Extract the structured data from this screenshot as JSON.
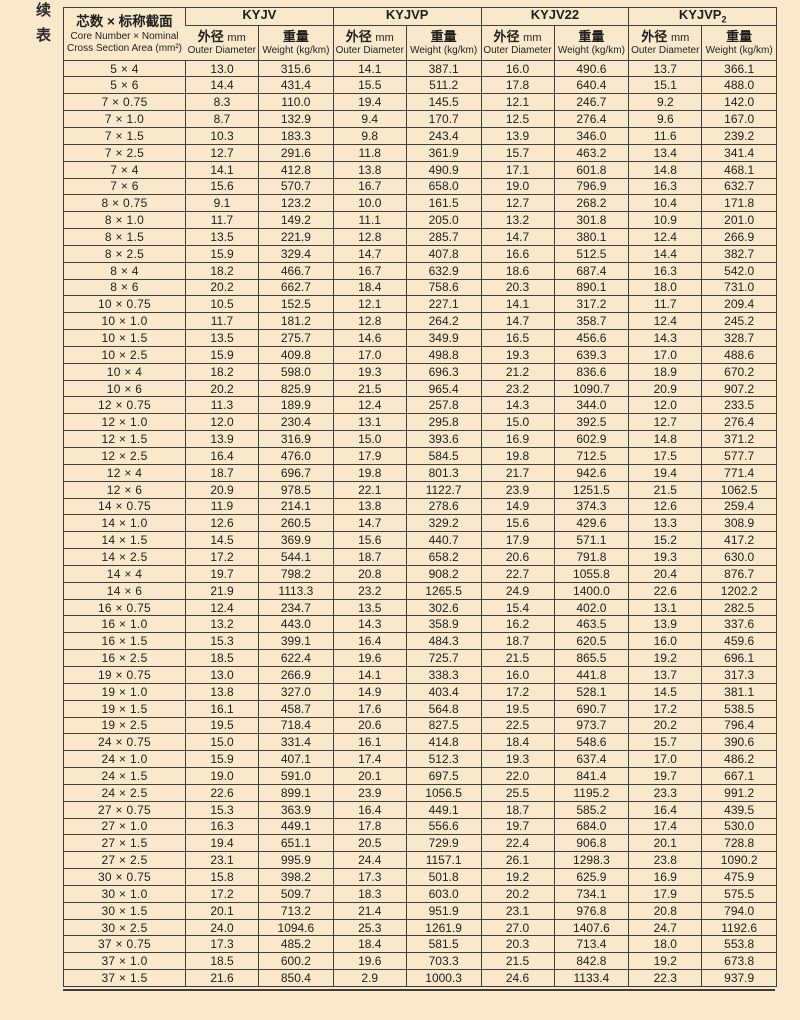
{
  "page": {
    "continued_label_line1": "续",
    "continued_label_line2": "表"
  },
  "colors": {
    "background": "#f9e9ca",
    "grid_line": "#3f3e3c",
    "text": "#1e1e1e"
  },
  "table": {
    "row_header": {
      "line1_zh": "芯数 × 标称截面",
      "line2_en": "Core Number × Nominal",
      "line3_en": "Cross Section Area (mm²)"
    },
    "groups": [
      {
        "label": "KYJV",
        "sub": ""
      },
      {
        "label": "KYJVP",
        "sub": ""
      },
      {
        "label": "KYJV22",
        "sub": ""
      },
      {
        "label": "KYJVP",
        "sub": "2"
      }
    ],
    "subheaders": {
      "diameter_zh": "外径",
      "diameter_unit": "mm",
      "diameter_en": "Outer Diameter",
      "weight_zh": "重量",
      "weight_en": "Weight (kg/km)"
    },
    "rows": [
      {
        "spec": "5 × 4",
        "values": [
          "13.0",
          "315.6",
          "14.1",
          "387.1",
          "16.0",
          "490.6",
          "13.7",
          "366.1"
        ]
      },
      {
        "spec": "5 × 6",
        "values": [
          "14.4",
          "431.4",
          "15.5",
          "511.2",
          "17.8",
          "640.4",
          "15.1",
          "488.0"
        ]
      },
      {
        "spec": "7 × 0.75",
        "values": [
          "8.3",
          "110.0",
          "19.4",
          "145.5",
          "12.1",
          "246.7",
          "9.2",
          "142.0"
        ]
      },
      {
        "spec": "7 × 1.0",
        "values": [
          "8.7",
          "132.9",
          "9.4",
          "170.7",
          "12.5",
          "276.4",
          "9.6",
          "167.0"
        ]
      },
      {
        "spec": "7 × 1.5",
        "values": [
          "10.3",
          "183.3",
          "9.8",
          "243.4",
          "13.9",
          "346.0",
          "11.6",
          "239.2"
        ]
      },
      {
        "spec": "7 × 2.5",
        "values": [
          "12.7",
          "291.6",
          "11.8",
          "361.9",
          "15.7",
          "463.2",
          "13.4",
          "341.4"
        ]
      },
      {
        "spec": "7 × 4",
        "values": [
          "14.1",
          "412.8",
          "13.8",
          "490.9",
          "17.1",
          "601.8",
          "14.8",
          "468.1"
        ]
      },
      {
        "spec": "7 × 6",
        "values": [
          "15.6",
          "570.7",
          "16.7",
          "658.0",
          "19.0",
          "796.9",
          "16.3",
          "632.7"
        ]
      },
      {
        "spec": "8 × 0.75",
        "values": [
          "9.1",
          "123.2",
          "10.0",
          "161.5",
          "12.7",
          "268.2",
          "10.4",
          "171.8"
        ]
      },
      {
        "spec": "8 × 1.0",
        "values": [
          "11.7",
          "149.2",
          "11.1",
          "205.0",
          "13.2",
          "301.8",
          "10.9",
          "201.0"
        ]
      },
      {
        "spec": "8 × 1.5",
        "values": [
          "13.5",
          "221.9",
          "12.8",
          "285.7",
          "14.7",
          "380.1",
          "12.4",
          "266.9"
        ]
      },
      {
        "spec": "8 × 2.5",
        "values": [
          "15.9",
          "329.4",
          "14.7",
          "407.8",
          "16.6",
          "512.5",
          "14.4",
          "382.7"
        ]
      },
      {
        "spec": "8 × 4",
        "values": [
          "18.2",
          "466.7",
          "16.7",
          "632.9",
          "18.6",
          "687.4",
          "16.3",
          "542.0"
        ]
      },
      {
        "spec": "8 × 6",
        "values": [
          "20.2",
          "662.7",
          "18.4",
          "758.6",
          "20.3",
          "890.1",
          "18.0",
          "731.0"
        ]
      },
      {
        "spec": "10 × 0.75",
        "values": [
          "10.5",
          "152.5",
          "12.1",
          "227.1",
          "14.1",
          "317.2",
          "11.7",
          "209.4"
        ]
      },
      {
        "spec": "10 × 1.0",
        "values": [
          "11.7",
          "181.2",
          "12.8",
          "264.2",
          "14.7",
          "358.7",
          "12.4",
          "245.2"
        ]
      },
      {
        "spec": "10 × 1.5",
        "values": [
          "13.5",
          "275.7",
          "14.6",
          "349.9",
          "16.5",
          "456.6",
          "14.3",
          "328.7"
        ]
      },
      {
        "spec": "10 × 2.5",
        "values": [
          "15.9",
          "409.8",
          "17.0",
          "498.8",
          "19.3",
          "639.3",
          "17.0",
          "488.6"
        ]
      },
      {
        "spec": "10 × 4",
        "values": [
          "18.2",
          "598.0",
          "19.3",
          "696.3",
          "21.2",
          "836.6",
          "18.9",
          "670.2"
        ]
      },
      {
        "spec": "10 × 6",
        "values": [
          "20.2",
          "825.9",
          "21.5",
          "965.4",
          "23.2",
          "1090.7",
          "20.9",
          "907.2"
        ]
      },
      {
        "spec": "12 × 0.75",
        "values": [
          "11.3",
          "189.9",
          "12.4",
          "257.8",
          "14.3",
          "344.0",
          "12.0",
          "233.5"
        ]
      },
      {
        "spec": "12 × 1.0",
        "values": [
          "12.0",
          "230.4",
          "13.1",
          "295.8",
          "15.0",
          "392.5",
          "12.7",
          "276.4"
        ]
      },
      {
        "spec": "12 × 1.5",
        "values": [
          "13.9",
          "316.9",
          "15.0",
          "393.6",
          "16.9",
          "602.9",
          "14.8",
          "371.2"
        ]
      },
      {
        "spec": "12 × 2.5",
        "values": [
          "16.4",
          "476.0",
          "17.9",
          "584.5",
          "19.8",
          "712.5",
          "17.5",
          "577.7"
        ]
      },
      {
        "spec": "12 × 4",
        "values": [
          "18.7",
          "696.7",
          "19.8",
          "801.3",
          "21.7",
          "942.6",
          "19.4",
          "771.4"
        ]
      },
      {
        "spec": "12 × 6",
        "values": [
          "20.9",
          "978.5",
          "22.1",
          "1122.7",
          "23.9",
          "1251.5",
          "21.5",
          "1062.5"
        ]
      },
      {
        "spec": "14 × 0.75",
        "values": [
          "11.9",
          "214.1",
          "13.8",
          "278.6",
          "14.9",
          "374.3",
          "12.6",
          "259.4"
        ]
      },
      {
        "spec": "14 × 1.0",
        "values": [
          "12.6",
          "260.5",
          "14.7",
          "329.2",
          "15.6",
          "429.6",
          "13.3",
          "308.9"
        ]
      },
      {
        "spec": "14 × 1.5",
        "values": [
          "14.5",
          "369.9",
          "15.6",
          "440.7",
          "17.9",
          "571.1",
          "15.2",
          "417.2"
        ]
      },
      {
        "spec": "14 × 2.5",
        "values": [
          "17.2",
          "544.1",
          "18.7",
          "658.2",
          "20.6",
          "791.8",
          "19.3",
          "630.0"
        ]
      },
      {
        "spec": "14 × 4",
        "values": [
          "19.7",
          "798.2",
          "20.8",
          "908.2",
          "22.7",
          "1055.8",
          "20.4",
          "876.7"
        ]
      },
      {
        "spec": "14 × 6",
        "values": [
          "21.9",
          "1113.3",
          "23.2",
          "1265.5",
          "24.9",
          "1400.0",
          "22.6",
          "1202.2"
        ]
      },
      {
        "spec": "16 × 0.75",
        "values": [
          "12.4",
          "234.7",
          "13.5",
          "302.6",
          "15.4",
          "402.0",
          "13.1",
          "282.5"
        ]
      },
      {
        "spec": "16 × 1.0",
        "values": [
          "13.2",
          "443.0",
          "14.3",
          "358.9",
          "16.2",
          "463.5",
          "13.9",
          "337.6"
        ]
      },
      {
        "spec": "16 × 1.5",
        "values": [
          "15.3",
          "399.1",
          "16.4",
          "484.3",
          "18.7",
          "620.5",
          "16.0",
          "459.6"
        ]
      },
      {
        "spec": "16 × 2.5",
        "values": [
          "18.5",
          "622.4",
          "19.6",
          "725.7",
          "21.5",
          "865.5",
          "19.2",
          "696.1"
        ]
      },
      {
        "spec": "19 × 0.75",
        "values": [
          "13.0",
          "266.9",
          "14.1",
          "338.3",
          "16.0",
          "441.8",
          "13.7",
          "317.3"
        ]
      },
      {
        "spec": "19 × 1.0",
        "values": [
          "13.8",
          "327.0",
          "14.9",
          "403.4",
          "17.2",
          "528.1",
          "14.5",
          "381.1"
        ]
      },
      {
        "spec": "19 × 1.5",
        "values": [
          "16.1",
          "458.7",
          "17.6",
          "564.8",
          "19.5",
          "690.7",
          "17.2",
          "538.5"
        ]
      },
      {
        "spec": "19 × 2.5",
        "values": [
          "19.5",
          "718.4",
          "20.6",
          "827.5",
          "22.5",
          "973.7",
          "20.2",
          "796.4"
        ]
      },
      {
        "spec": "24 × 0.75",
        "values": [
          "15.0",
          "331.4",
          "16.1",
          "414.8",
          "18.4",
          "548.6",
          "15.7",
          "390.6"
        ]
      },
      {
        "spec": "24 × 1.0",
        "values": [
          "15.9",
          "407.1",
          "17.4",
          "512.3",
          "19.3",
          "637.4",
          "17.0",
          "486.2"
        ]
      },
      {
        "spec": "24 × 1.5",
        "values": [
          "19.0",
          "591.0",
          "20.1",
          "697.5",
          "22.0",
          "841.4",
          "19.7",
          "667.1"
        ]
      },
      {
        "spec": "24 × 2.5",
        "values": [
          "22.6",
          "899.1",
          "23.9",
          "1056.5",
          "25.5",
          "1195.2",
          "23.3",
          "991.2"
        ]
      },
      {
        "spec": "27 × 0.75",
        "values": [
          "15.3",
          "363.9",
          "16.4",
          "449.1",
          "18.7",
          "585.2",
          "16.4",
          "439.5"
        ]
      },
      {
        "spec": "27 × 1.0",
        "values": [
          "16.3",
          "449.1",
          "17.8",
          "556.6",
          "19.7",
          "684.0",
          "17.4",
          "530.0"
        ]
      },
      {
        "spec": "27 × 1.5",
        "values": [
          "19.4",
          "651.1",
          "20.5",
          "729.9",
          "22.4",
          "906.8",
          "20.1",
          "728.8"
        ]
      },
      {
        "spec": "27 × 2.5",
        "values": [
          "23.1",
          "995.9",
          "24.4",
          "1157.1",
          "26.1",
          "1298.3",
          "23.8",
          "1090.2"
        ]
      },
      {
        "spec": "30 × 0.75",
        "values": [
          "15.8",
          "398.2",
          "17.3",
          "501.8",
          "19.2",
          "625.9",
          "16.9",
          "475.9"
        ]
      },
      {
        "spec": "30 × 1.0",
        "values": [
          "17.2",
          "509.7",
          "18.3",
          "603.0",
          "20.2",
          "734.1",
          "17.9",
          "575.5"
        ]
      },
      {
        "spec": "30 × 1.5",
        "values": [
          "20.1",
          "713.2",
          "21.4",
          "951.9",
          "23.1",
          "976.8",
          "20.8",
          "794.0"
        ]
      },
      {
        "spec": "30 × 2.5",
        "values": [
          "24.0",
          "1094.6",
          "25.3",
          "1261.9",
          "27.0",
          "1407.6",
          "24.7",
          "1192.6"
        ]
      },
      {
        "spec": "37 × 0.75",
        "values": [
          "17.3",
          "485.2",
          "18.4",
          "581.5",
          "20.3",
          "713.4",
          "18.0",
          "553.8"
        ]
      },
      {
        "spec": "37 × 1.0",
        "values": [
          "18.5",
          "600.2",
          "19.6",
          "703.3",
          "21.5",
          "842.8",
          "19.2",
          "673.8"
        ]
      },
      {
        "spec": "37 × 1.5",
        "values": [
          "21.6",
          "850.4",
          "2.9",
          "1000.3",
          "24.6",
          "1133.4",
          "22.3",
          "937.9"
        ]
      }
    ]
  }
}
